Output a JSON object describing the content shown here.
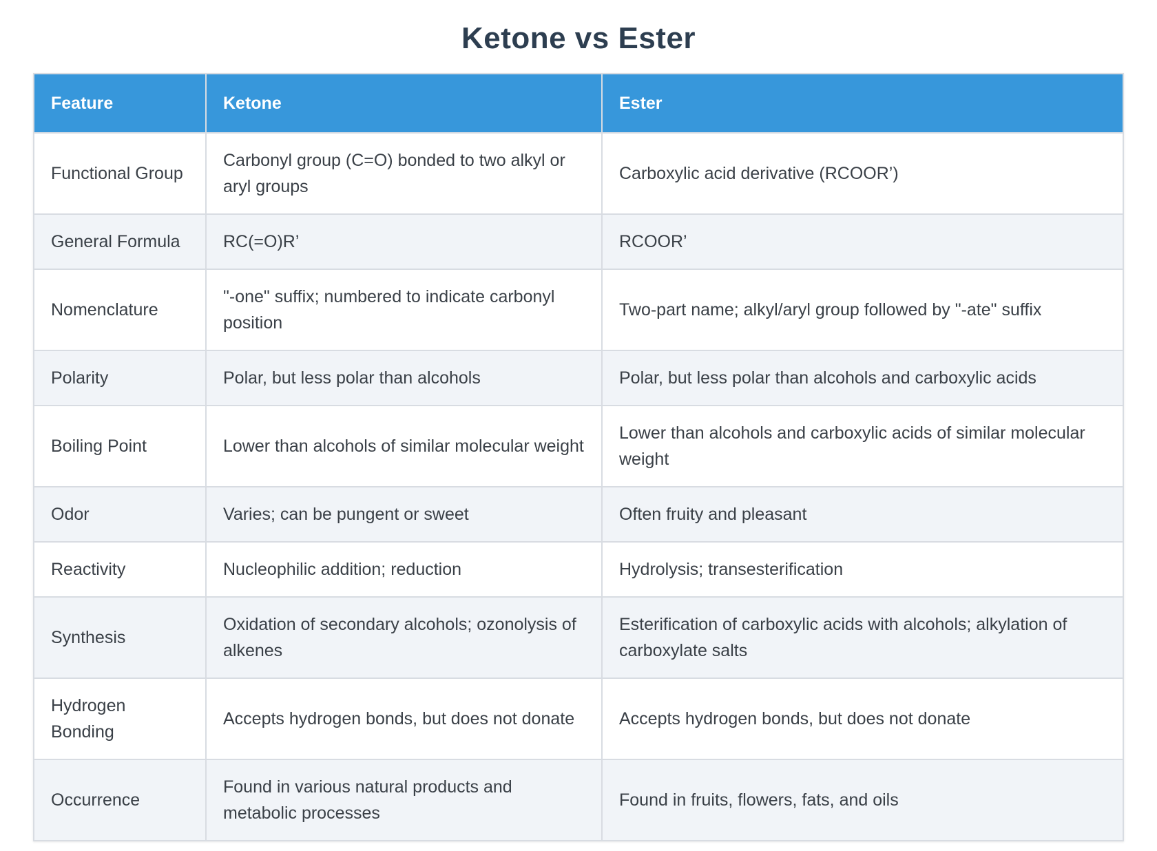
{
  "page": {
    "title": "Ketone vs Ester"
  },
  "colors": {
    "header_bg": "#3797db",
    "header_text": "#ffffff",
    "title_text": "#2d3e50",
    "body_text": "#3a4047",
    "grid_line": "#d8dce2",
    "row_alt_bg": "#f1f4f8",
    "row_bg": "#ffffff"
  },
  "table": {
    "columns": [
      {
        "label": "Feature"
      },
      {
        "label": "Ketone"
      },
      {
        "label": "Ester"
      }
    ],
    "rows": [
      {
        "feature": "Functional Group",
        "ketone": "Carbonyl group (C=O) bonded to two alkyl or aryl groups",
        "ester": "Carboxylic acid derivative (RCOOR’)"
      },
      {
        "feature": "General Formula",
        "ketone": "RC(=O)R’",
        "ester": "RCOOR’"
      },
      {
        "feature": "Nomenclature",
        "ketone": "\"-one\" suffix; numbered to indicate carbonyl position",
        "ester": "Two-part name; alkyl/aryl group followed by \"-ate\" suffix"
      },
      {
        "feature": "Polarity",
        "ketone": "Polar, but less polar than alcohols",
        "ester": "Polar, but less polar than alcohols and carboxylic acids"
      },
      {
        "feature": "Boiling Point",
        "ketone": "Lower than alcohols of similar molecular weight",
        "ester": "Lower than alcohols and carboxylic acids of similar molecular weight"
      },
      {
        "feature": "Odor",
        "ketone": "Varies; can be pungent or sweet",
        "ester": "Often fruity and pleasant"
      },
      {
        "feature": "Reactivity",
        "ketone": "Nucleophilic addition; reduction",
        "ester": "Hydrolysis; transesterification"
      },
      {
        "feature": "Synthesis",
        "ketone": "Oxidation of secondary alcohols; ozonolysis of alkenes",
        "ester": "Esterification of carboxylic acids with alcohols; alkylation of carboxylate salts"
      },
      {
        "feature": "Hydrogen Bonding",
        "ketone": "Accepts hydrogen bonds, but does not donate",
        "ester": "Accepts hydrogen bonds, but does not donate"
      },
      {
        "feature": "Occurrence",
        "ketone": "Found in various natural products and metabolic processes",
        "ester": "Found in fruits, flowers, fats, and oils"
      }
    ]
  }
}
